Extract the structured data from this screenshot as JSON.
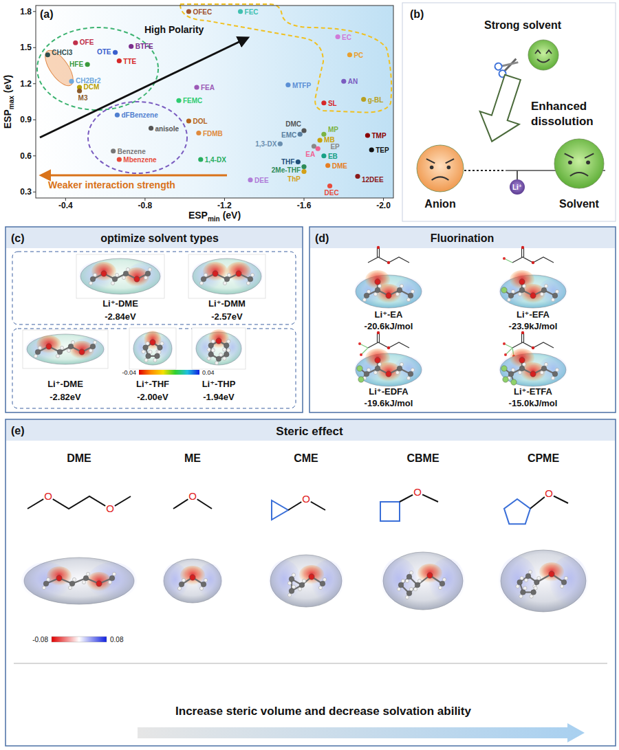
{
  "chart_data": {
    "type": "scatter",
    "panel_label": "(a)",
    "xlabel": {
      "text": "ESP",
      "sub": "min",
      "unit": "(eV)"
    },
    "ylabel": {
      "text": "ESP",
      "sub": "max",
      "unit": "(eV)"
    },
    "xlim": [
      -0.25,
      -2.05
    ],
    "ylim": [
      0.25,
      1.85
    ],
    "xticks": [
      -0.4,
      -0.8,
      -1.2,
      -1.6,
      {
        "value": -2,
        "label": "-2.0"
      }
    ],
    "yticks": [
      0.3,
      0.6,
      0.9,
      1.2,
      1.5,
      1.8
    ],
    "grid": false,
    "labels": [
      "OFEC",
      "FEC",
      "EC",
      "PC",
      "AN",
      "g-BL",
      "SL",
      "MTFP",
      "FEA",
      "FEMC",
      "DOL",
      "FDMB",
      "dFBenzene",
      "anisole",
      "Benzene",
      "Mbenzene",
      "DMC",
      "EMC",
      "1,3-DX",
      "EP",
      "MP",
      "MB",
      "EA",
      "EB",
      "1,4-DX",
      "THF",
      "2Me-THF",
      "ThP",
      "DME",
      "12DEE",
      "DEE",
      "DEC",
      "TMP",
      "TEP",
      "OFE",
      "CHCl3",
      "OTE",
      "BTFE",
      "HFE",
      "TTE",
      "CH2Br2",
      "DCM",
      "M3"
    ],
    "x": [
      -1.02,
      -1.28,
      -1.77,
      -1.83,
      -1.8,
      -1.9,
      -1.7,
      -1.52,
      -1.06,
      -0.97,
      -1.02,
      -1.07,
      -0.66,
      -0.83,
      -0.64,
      -0.67,
      -1.6,
      -1.58,
      -1.48,
      -1.65,
      -1.7,
      -1.68,
      -1.67,
      -1.7,
      -1.08,
      -1.57,
      -1.6,
      -1.6,
      -1.72,
      -1.87,
      -1.33,
      -1.73,
      -1.92,
      -1.94,
      -0.45,
      -0.31,
      -0.65,
      -0.73,
      -0.51,
      -0.67,
      -0.43,
      -0.47,
      -0.47
    ],
    "values": [
      1.8,
      1.8,
      1.59,
      1.44,
      1.22,
      1.07,
      1.04,
      1.19,
      1.17,
      1.06,
      0.89,
      0.79,
      0.94,
      0.83,
      0.64,
      0.57,
      0.81,
      0.78,
      0.7,
      0.68,
      0.78,
      0.73,
      0.66,
      0.6,
      0.57,
      0.55,
      0.51,
      0.47,
      0.52,
      0.43,
      0.4,
      0.35,
      0.77,
      0.65,
      1.54,
      1.44,
      1.46,
      1.51,
      1.36,
      1.39,
      1.22,
      1.17,
      1.14
    ],
    "colors": [
      "#a0522d",
      "#40c0b0",
      "#d07ad8",
      "#e8a030",
      "#7a5cc0",
      "#b8a020",
      "#d62728",
      "#5b8fd5",
      "#9b59b6",
      "#2ecc71",
      "#b5651d",
      "#e08a3c",
      "#4f7fd0",
      "#555555",
      "#777777",
      "#e74c3c",
      "#555555",
      "#5a7fa0",
      "#6b8fb0",
      "#888888",
      "#7cb342",
      "#c9a20c",
      "#f06292",
      "#16a085",
      "#27ae60",
      "#1f4e79",
      "#2e8b57",
      "#d4a017",
      "#e67e22",
      "#8b1a1a",
      "#b07cd8",
      "#e74c3c",
      "#8b0000",
      "#111111",
      "#c0304a",
      "#2f4f4f",
      "#3a5fcd",
      "#7b2d8e",
      "#3a9a3a",
      "#d62728",
      "#6fa8dc",
      "#b8a000",
      "#8b5a2b"
    ],
    "annotations": [
      "High Polarity",
      "Weaker interaction strength"
    ]
  },
  "panels": {
    "b": {
      "label": "(b)",
      "strong_solvent": "Strong solvent",
      "arrow_text": "Enhanced dissolution",
      "anion": "Anion",
      "solvent": "Solvent",
      "ion": "Li⁺"
    },
    "c": {
      "label": "(c)",
      "title": "optimize solvent types",
      "groups": [
        {
          "items": [
            {
              "name": "Li⁺-DME",
              "energy": "-2.84eV"
            },
            {
              "name": "Li⁺-DMM",
              "energy": "-2.57eV"
            }
          ]
        },
        {
          "items": [
            {
              "name": "Li⁺-DME",
              "energy": "-2.82eV"
            },
            {
              "name": "Li⁺-THF",
              "energy": "-2.00eV"
            },
            {
              "name": "Li⁺-THP",
              "energy": "-1.94eV"
            }
          ]
        }
      ],
      "colorbar": {
        "min": -0.04,
        "max": 0.04
      }
    },
    "d": {
      "label": "(d)",
      "title": "Fluorination",
      "items": [
        {
          "name": "Li⁺-EA",
          "energy": "-20.6kJ/mol"
        },
        {
          "name": "Li⁺-EFA",
          "energy": "-23.9kJ/mol"
        },
        {
          "name": "Li⁺-EDFA",
          "energy": "-19.6kJ/mol"
        },
        {
          "name": "Li⁺-ETFA",
          "energy": "-15.0kJ/mol"
        }
      ]
    },
    "e": {
      "label": "(e)",
      "title": "Steric effect",
      "atom_label": "O",
      "molecules": [
        "DME",
        "ME",
        "CME",
        "CBME",
        "CPME"
      ],
      "colorbar": {
        "min": -0.08,
        "max": 0.08
      },
      "arrow_text": "Increase steric volume and decrease solvation ability"
    }
  }
}
